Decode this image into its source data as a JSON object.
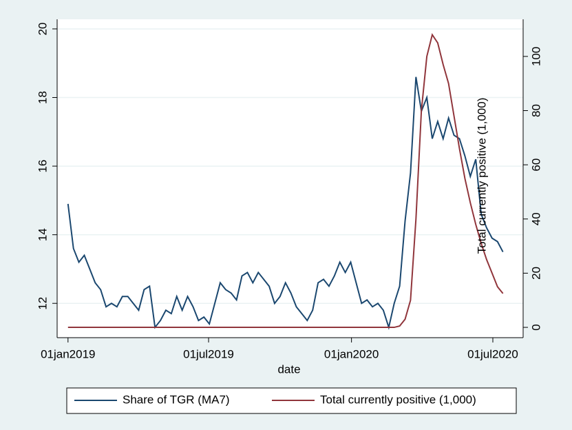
{
  "chart_data": {
    "type": "line",
    "x_label": "date",
    "y2_label": "Total currently positive (1,000)",
    "x": [
      "2019-01-01",
      "2019-01-08",
      "2019-01-15",
      "2019-01-22",
      "2019-01-29",
      "2019-02-05",
      "2019-02-12",
      "2019-02-19",
      "2019-02-26",
      "2019-03-05",
      "2019-03-12",
      "2019-03-19",
      "2019-03-26",
      "2019-04-02",
      "2019-04-09",
      "2019-04-16",
      "2019-04-23",
      "2019-04-30",
      "2019-05-07",
      "2019-05-14",
      "2019-05-21",
      "2019-05-28",
      "2019-06-04",
      "2019-06-11",
      "2019-06-18",
      "2019-06-25",
      "2019-07-02",
      "2019-07-09",
      "2019-07-16",
      "2019-07-23",
      "2019-07-30",
      "2019-08-06",
      "2019-08-13",
      "2019-08-20",
      "2019-08-27",
      "2019-09-03",
      "2019-09-10",
      "2019-09-17",
      "2019-09-24",
      "2019-10-01",
      "2019-10-08",
      "2019-10-15",
      "2019-10-22",
      "2019-10-29",
      "2019-11-05",
      "2019-11-12",
      "2019-11-19",
      "2019-11-26",
      "2019-12-03",
      "2019-12-10",
      "2019-12-17",
      "2019-12-24",
      "2019-12-31",
      "2020-01-07",
      "2020-01-14",
      "2020-01-21",
      "2020-01-28",
      "2020-02-04",
      "2020-02-11",
      "2020-02-18",
      "2020-02-25",
      "2020-03-03",
      "2020-03-10",
      "2020-03-17",
      "2020-03-24",
      "2020-03-31",
      "2020-04-07",
      "2020-04-14",
      "2020-04-21",
      "2020-04-28",
      "2020-05-05",
      "2020-05-12",
      "2020-05-19",
      "2020-05-26",
      "2020-06-02",
      "2020-06-09",
      "2020-06-16",
      "2020-06-23",
      "2020-06-30",
      "2020-07-07",
      "2020-07-14"
    ],
    "series": [
      {
        "name": "Share of TGR (MA7)",
        "color": "#1a476f",
        "axis": "y",
        "values": [
          14.9,
          13.6,
          13.2,
          13.4,
          13.0,
          12.6,
          12.4,
          11.9,
          12.0,
          11.9,
          12.2,
          12.2,
          12.0,
          11.8,
          12.4,
          12.5,
          11.3,
          11.5,
          11.8,
          11.7,
          12.2,
          11.8,
          12.2,
          11.9,
          11.5,
          11.6,
          11.4,
          12.0,
          12.6,
          12.4,
          12.3,
          12.1,
          12.8,
          12.9,
          12.6,
          12.9,
          12.7,
          12.5,
          12.0,
          12.2,
          12.6,
          12.3,
          11.9,
          11.7,
          11.5,
          11.8,
          12.6,
          12.7,
          12.5,
          12.8,
          13.2,
          12.9,
          13.2,
          12.6,
          12.0,
          12.1,
          11.9,
          12.0,
          11.8,
          11.3,
          12.0,
          12.5,
          14.4,
          15.8,
          18.6,
          17.6,
          18.0,
          16.8,
          17.3,
          16.8,
          17.4,
          16.9,
          16.8,
          16.3,
          15.7,
          16.2,
          14.6,
          14.2,
          13.9,
          13.8,
          13.5
        ]
      },
      {
        "name": "Total currently positive (1,000)",
        "color": "#90353b",
        "axis": "y2",
        "values": [
          0,
          0,
          0,
          0,
          0,
          0,
          0,
          0,
          0,
          0,
          0,
          0,
          0,
          0,
          0,
          0,
          0,
          0,
          0,
          0,
          0,
          0,
          0,
          0,
          0,
          0,
          0,
          0,
          0,
          0,
          0,
          0,
          0,
          0,
          0,
          0,
          0,
          0,
          0,
          0,
          0,
          0,
          0,
          0,
          0,
          0,
          0,
          0,
          0,
          0,
          0,
          0,
          0,
          0,
          0,
          0,
          0,
          0,
          0,
          0,
          0,
          0.5,
          3,
          10,
          40,
          80,
          100,
          108,
          105,
          97,
          90,
          78,
          66,
          55,
          46,
          38,
          31,
          25,
          20,
          15,
          12.5
        ]
      }
    ],
    "xlim": [
      "2018-12-18",
      "2020-08-09"
    ],
    "xticks": [
      {
        "value": "2019-01-01",
        "label": "01jan2019"
      },
      {
        "value": "2019-07-01",
        "label": "01jul2019"
      },
      {
        "value": "2020-01-01",
        "label": "01jan2020"
      },
      {
        "value": "2020-07-01",
        "label": "01jul2020"
      }
    ],
    "ylim": [
      11.0,
      20.28
    ],
    "yticks": [
      12,
      14,
      16,
      18,
      20
    ],
    "y2lim": [
      -3.8,
      113.7
    ],
    "y2ticks": [
      0,
      20,
      40,
      60,
      80,
      100
    ],
    "grid": true,
    "legend": "bottom"
  }
}
